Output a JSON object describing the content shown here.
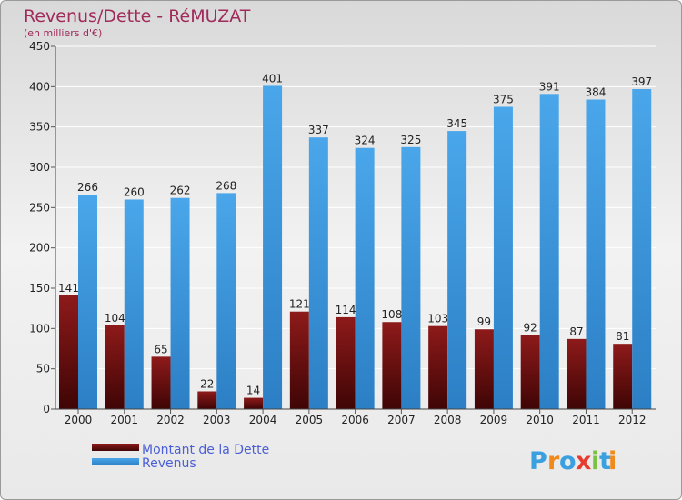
{
  "chart_data": {
    "type": "bar",
    "title": "Revenus/Dette - RéMUZAT",
    "subtitle": "(en milliers d'€)",
    "categories": [
      "2000",
      "2001",
      "2002",
      "2003",
      "2004",
      "2005",
      "2006",
      "2007",
      "2008",
      "2009",
      "2010",
      "2011",
      "2012"
    ],
    "series": [
      {
        "name": "Montant de la Dette",
        "color": "#7a0f0f",
        "values": [
          141,
          104,
          65,
          22,
          14,
          121,
          114,
          108,
          103,
          99,
          92,
          87,
          81
        ]
      },
      {
        "name": "Revenus",
        "color": "#3d9ae2",
        "values": [
          266,
          260,
          262,
          268,
          401,
          337,
          324,
          325,
          345,
          375,
          391,
          384,
          397
        ]
      }
    ],
    "ylim": [
      0,
      450
    ],
    "yticks": [
      0,
      50,
      100,
      150,
      200,
      250,
      300,
      350,
      400,
      450
    ],
    "grid": true,
    "legend": "bottom-left"
  },
  "branding": {
    "logo_letters": [
      "P",
      "r",
      "o",
      "x",
      "i",
      "t",
      "i"
    ],
    "logo_colors": [
      "#3aa0e0",
      "#f08a1c",
      "#3aa0e0",
      "#e63b2e",
      "#7cc242",
      "#3aa0e0",
      "#f08a1c"
    ]
  }
}
